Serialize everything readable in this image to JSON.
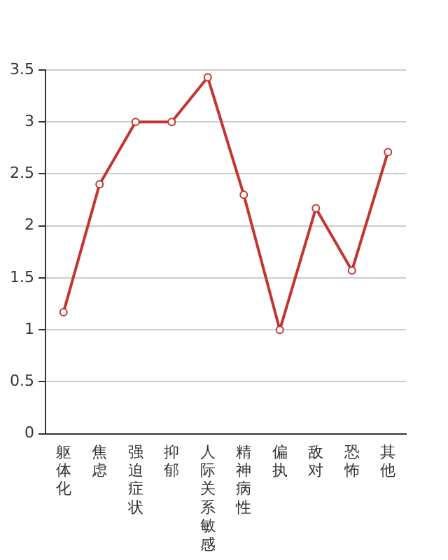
{
  "chart_data": {
    "type": "line",
    "categories": [
      "躯体化",
      "焦虑",
      "强迫症状",
      "抑郁",
      "人际关系敏感",
      "精神病性",
      "偏执",
      "敌对",
      "恐怖",
      "其他"
    ],
    "series": [
      {
        "color": "#c23531",
        "values": [
          1.17,
          2.4,
          3.0,
          3.0,
          3.43,
          2.3,
          1.0,
          2.17,
          1.57,
          2.71
        ]
      }
    ],
    "ylim": [
      0,
      3.5
    ],
    "yticks": [
      0,
      0.5,
      1,
      1.5,
      2,
      2.5,
      3,
      3.5
    ],
    "grid": "y",
    "marker": "circle",
    "line_style": "solid",
    "legend": false
  }
}
